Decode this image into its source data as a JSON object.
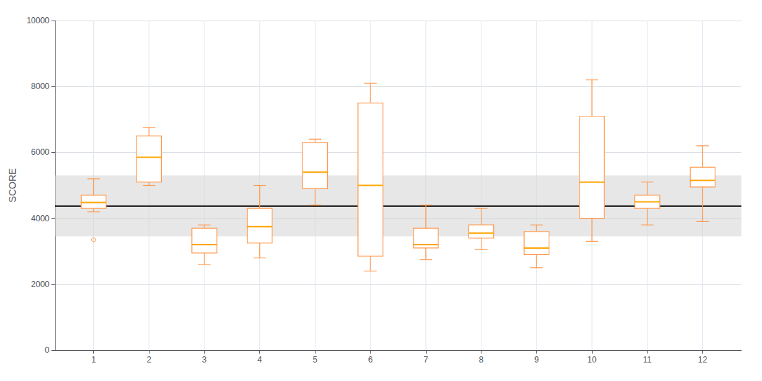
{
  "chart_data": {
    "type": "box",
    "ylabel": "SCORE",
    "x": [
      1,
      2,
      3,
      4,
      5,
      6,
      7,
      8,
      9,
      10,
      11,
      12
    ],
    "xlim": [
      0.3,
      12.7
    ],
    "xticks": [
      1,
      2,
      3,
      4,
      5,
      6,
      7,
      8,
      9,
      10,
      11,
      12
    ],
    "ylim": [
      0,
      10000
    ],
    "yticks": [
      0,
      2000,
      4000,
      6000,
      8000,
      10000
    ],
    "grid": true,
    "series": [
      {
        "type": "band",
        "lower": 3450,
        "upper": 5300,
        "color": "#d3d3d3"
      },
      {
        "type": "hline",
        "value": 4370,
        "color": "#000000"
      },
      {
        "type": "box",
        "color": "#FFA500",
        "boxes": [
          {
            "whislo": 4200,
            "q1": 4300,
            "med": 4480,
            "q3": 4700,
            "whishi": 5200,
            "fliers": [
              3350
            ]
          },
          {
            "whislo": 5000,
            "q1": 5100,
            "med": 5850,
            "q3": 6500,
            "whishi": 6750,
            "fliers": []
          },
          {
            "whislo": 2600,
            "q1": 2950,
            "med": 3200,
            "q3": 3700,
            "whishi": 3800,
            "fliers": []
          },
          {
            "whislo": 2800,
            "q1": 3250,
            "med": 3750,
            "q3": 4300,
            "whishi": 5000,
            "fliers": []
          },
          {
            "whislo": 4400,
            "q1": 4900,
            "med": 5400,
            "q3": 6300,
            "whishi": 6400,
            "fliers": []
          },
          {
            "whislo": 2400,
            "q1": 2850,
            "med": 5000,
            "q3": 7500,
            "whishi": 8100,
            "fliers": []
          },
          {
            "whislo": 2750,
            "q1": 3100,
            "med": 3200,
            "q3": 3700,
            "whishi": 4400,
            "fliers": []
          },
          {
            "whislo": 3050,
            "q1": 3400,
            "med": 3550,
            "q3": 3800,
            "whishi": 4300,
            "fliers": []
          },
          {
            "whislo": 2500,
            "q1": 2900,
            "med": 3100,
            "q3": 3600,
            "whishi": 3800,
            "fliers": []
          },
          {
            "whislo": 3300,
            "q1": 4000,
            "med": 5100,
            "q3": 7100,
            "whishi": 8200,
            "fliers": []
          },
          {
            "whislo": 3800,
            "q1": 4300,
            "med": 4500,
            "q3": 4700,
            "whishi": 5100,
            "fliers": []
          },
          {
            "whislo": 3900,
            "q1": 4950,
            "med": 5150,
            "q3": 5550,
            "whishi": 6200,
            "fliers": []
          }
        ]
      }
    ]
  }
}
